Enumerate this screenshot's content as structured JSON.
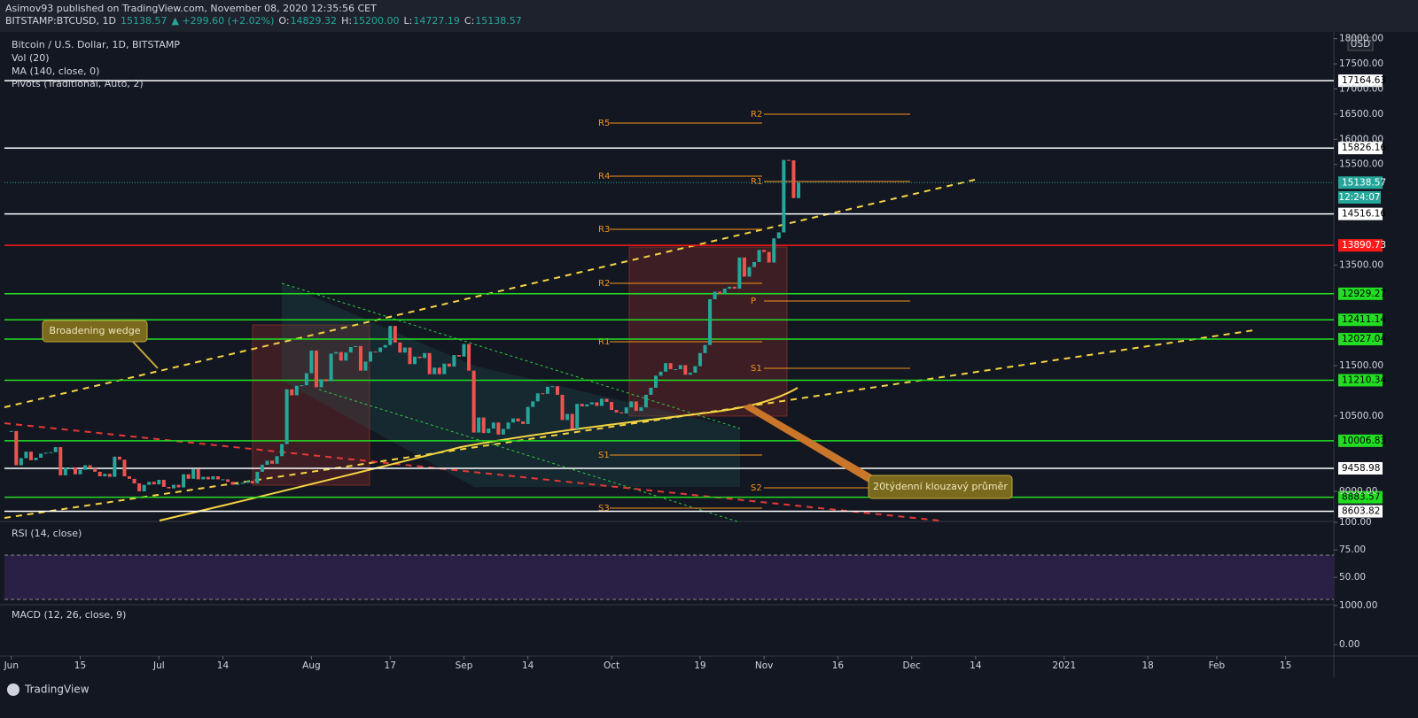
{
  "header": {
    "publisher": "Asimov93 published on TradingView.com, November 08, 2020 12:35:56 CET",
    "symbol": "BITSTAMP:BTCUSD, 1D",
    "last": "15138.57",
    "change": "▲ +299.60 (+2.02%)",
    "ohlc": [
      {
        "k": "O:",
        "v": "14829.32"
      },
      {
        "k": "H:",
        "v": "15200.00"
      },
      {
        "k": "L:",
        "v": "14727.19"
      },
      {
        "k": "C:",
        "v": "15138.57"
      }
    ]
  },
  "legend": [
    "Bitcoin / U.S. Dollar, 1D, BITSTAMP",
    "Vol (20)",
    "MA (140, close, 0)",
    "Pivots (Traditional, Auto, 2)"
  ],
  "currency": "USD",
  "countdown": "12:24:07",
  "annotations": [
    "Broadening wedge",
    "20týdenní klouzavý průměr"
  ],
  "pivots_left": [
    "R5",
    "R4",
    "R3",
    "R2",
    "R1",
    "S1",
    "S3"
  ],
  "pivots_right": [
    "R2",
    "R1",
    "P",
    "S1",
    "S2"
  ],
  "chart_data": {
    "type": "candlestick",
    "values": [
      10200,
      9520,
      9660,
      9790,
      9620,
      9670,
      9750,
      9770,
      9780,
      9880,
      9320,
      9470,
      9470,
      9340,
      9430,
      9520,
      9460,
      9390,
      9300,
      9350,
      9290,
      9690,
      9630,
      9300,
      9250,
      9160,
      9000,
      9130,
      9190,
      9140,
      9230,
      9090,
      9060,
      9130,
      9080,
      9340,
      9250,
      9440,
      9240,
      9290,
      9240,
      9300,
      9240,
      9240,
      9190,
      9130,
      9150,
      9170,
      9210,
      9160,
      9390,
      9530,
      9610,
      9550,
      9700,
      9940,
      11030,
      10910,
      11100,
      11110,
      11350,
      11800,
      11070,
      11230,
      11190,
      11740,
      11770,
      11600,
      11760,
      11870,
      11890,
      11400,
      11580,
      11780,
      11770,
      11860,
      11910,
      12290,
      11960,
      11760,
      11860,
      11530,
      11680,
      11650,
      11750,
      11330,
      11460,
      11330,
      11540,
      11480,
      11710,
      11680,
      11930,
      11400,
      10170,
      10470,
      10160,
      10250,
      10370,
      10130,
      10240,
      10370,
      10450,
      10390,
      10340,
      10680,
      10790,
      10950,
      10940,
      11080,
      11090,
      10920,
      10420,
      10540,
      10240,
      10740,
      10690,
      10730,
      10770,
      10700,
      10840,
      10780,
      10620,
      10570,
      10550,
      10670,
      10790,
      10600,
      10670,
      10920,
      11060,
      11300,
      11380,
      11550,
      11430,
      11430,
      11510,
      11320,
      11360,
      11490,
      11750,
      11910,
      12820,
      12970,
      12930,
      13030,
      13070,
      13030,
      13650,
      13270,
      13460,
      13560,
      13800,
      13760,
      13550,
      14030,
      14150,
      15590,
      15580,
      14830,
      15138.57
    ],
    "up_color": "#26a69a",
    "down_color": "#ef5350",
    "xlim": [
      -1.4,
      268.8
    ],
    "xticks": [
      {
        "value": 0,
        "label": "Jun"
      },
      {
        "value": 14,
        "label": "15"
      },
      {
        "value": 30,
        "label": "Jul"
      },
      {
        "value": 43,
        "label": "14"
      },
      {
        "value": 61,
        "label": "Aug"
      },
      {
        "value": 77,
        "label": "17"
      },
      {
        "value": 92,
        "label": "Sep"
      },
      {
        "value": 105,
        "label": "14"
      },
      {
        "value": 122,
        "label": "Oct"
      },
      {
        "value": 140,
        "label": "19"
      },
      {
        "value": 153,
        "label": "Nov"
      },
      {
        "value": 168,
        "label": "16"
      },
      {
        "value": 183,
        "label": "Dec"
      },
      {
        "value": 196,
        "label": "14"
      },
      {
        "value": 214,
        "label": "2021"
      },
      {
        "value": 231,
        "label": "18"
      },
      {
        "value": 245,
        "label": "Feb"
      },
      {
        "value": 259,
        "label": "15"
      }
    ],
    "ylim": [
      8420,
      18100
    ],
    "yticks": [
      {
        "value": 18000,
        "label": "18000.00"
      },
      {
        "value": 17500,
        "label": "17500.00"
      },
      {
        "value": 17000,
        "label": "17000.00"
      },
      {
        "value": 16500,
        "label": "16500.00"
      },
      {
        "value": 16000,
        "label": "16000.00"
      },
      {
        "value": 15500,
        "label": "15500.00"
      },
      {
        "value": 13500,
        "label": "13500.00"
      },
      {
        "value": 11500,
        "label": "11500.00"
      },
      {
        "value": 10500,
        "label": "10500.00"
      },
      {
        "value": 9000,
        "label": "9000.00"
      }
    ],
    "levels": [
      {
        "value": 17164.63,
        "color": "#ffffff"
      },
      {
        "value": 15826.16,
        "color": "#ffffff"
      },
      {
        "value": 14516.16,
        "color": "#ffffff"
      },
      {
        "value": 13890.73,
        "color": "#ff1a1a"
      },
      {
        "value": 12929.27,
        "color": "#22dd22"
      },
      {
        "value": 12411.14,
        "color": "#22dd22"
      },
      {
        "value": 12027.04,
        "color": "#22dd22"
      },
      {
        "value": 11210.34,
        "color": "#22dd22"
      },
      {
        "value": 10006.83,
        "color": "#22dd22"
      },
      {
        "value": 9458.98,
        "color": "#ffffff"
      },
      {
        "value": 8883.57,
        "color": "#22dd22"
      },
      {
        "value": 8603.82,
        "color": "#ffffff"
      }
    ],
    "current": {
      "value": 15138.57,
      "color": "#26a69a"
    }
  },
  "rsi": {
    "title": "RSI (14, close)",
    "ylim": [
      26,
      100
    ],
    "yticks": [
      {
        "value": 100,
        "label": "100.00"
      },
      {
        "value": 75,
        "label": "75.00"
      },
      {
        "value": 50,
        "label": "50.00"
      }
    ]
  },
  "macd": {
    "title": "MACD (12, 26, close, 9)",
    "ylim": [
      -270,
      1000
    ],
    "yticks": [
      {
        "value": 1000,
        "label": "1000.00"
      },
      {
        "value": 0,
        "label": "0.00"
      }
    ]
  },
  "footer": "TradingView"
}
